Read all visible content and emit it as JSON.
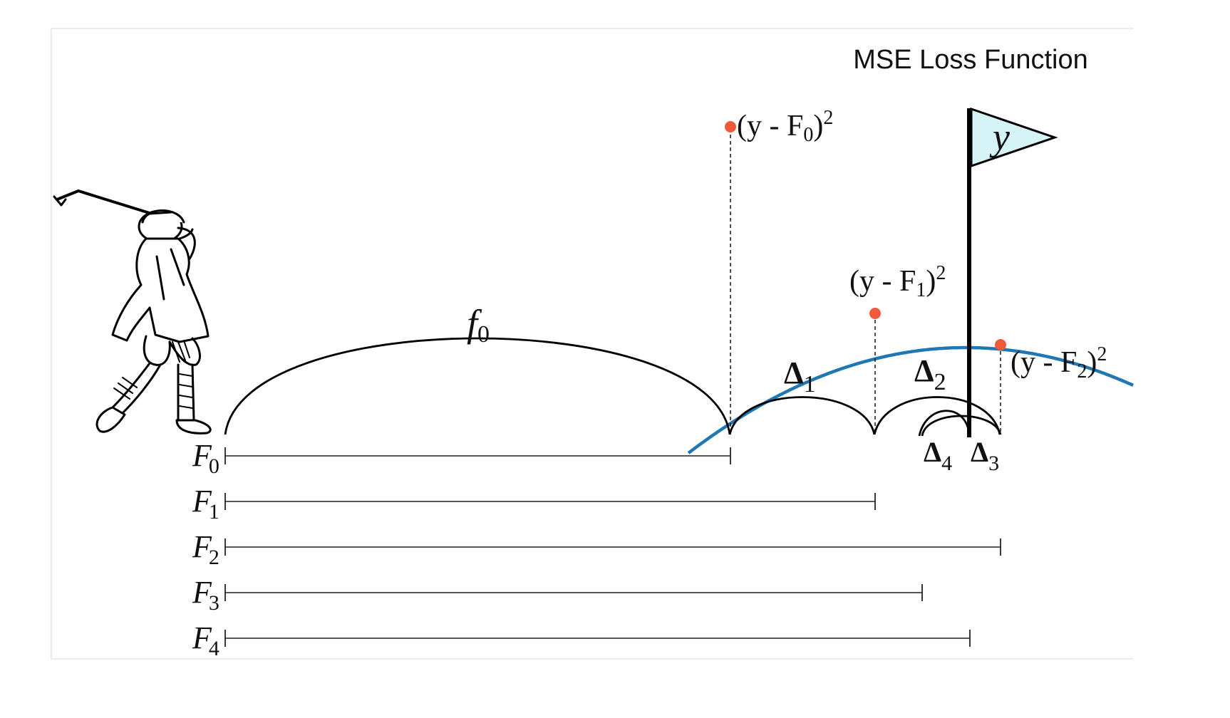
{
  "title": "MSE Loss Function",
  "flag_label": "y",
  "colors": {
    "curve": "#1f77b4",
    "point": "#f05a3a",
    "flag_fill": "#d6f3f8",
    "ink": "#000000",
    "frame": "#e6e6e6"
  },
  "arc_labels": {
    "f0": {
      "base": "f",
      "sub": "0"
    },
    "d1": {
      "base": "Δ",
      "sub": "1"
    },
    "d2": {
      "base": "Δ",
      "sub": "2"
    },
    "d3": {
      "base": "Δ",
      "sub": "3"
    },
    "d4": {
      "base": "Δ",
      "sub": "4"
    }
  },
  "loss_labels": [
    {
      "open": "(y - F",
      "sub": "0",
      "close": ")",
      "sup": "2"
    },
    {
      "open": "(y - F",
      "sub": "1",
      "close": ")",
      "sup": "2"
    },
    {
      "open": "(y - F",
      "sub": "2",
      "close": ")",
      "sup": "2"
    }
  ],
  "rows": [
    {
      "base": "F",
      "sub": "0"
    },
    {
      "base": "F",
      "sub": "1"
    },
    {
      "base": "F",
      "sub": "2"
    },
    {
      "base": "F",
      "sub": "3"
    },
    {
      "base": "F",
      "sub": "4"
    }
  ]
}
